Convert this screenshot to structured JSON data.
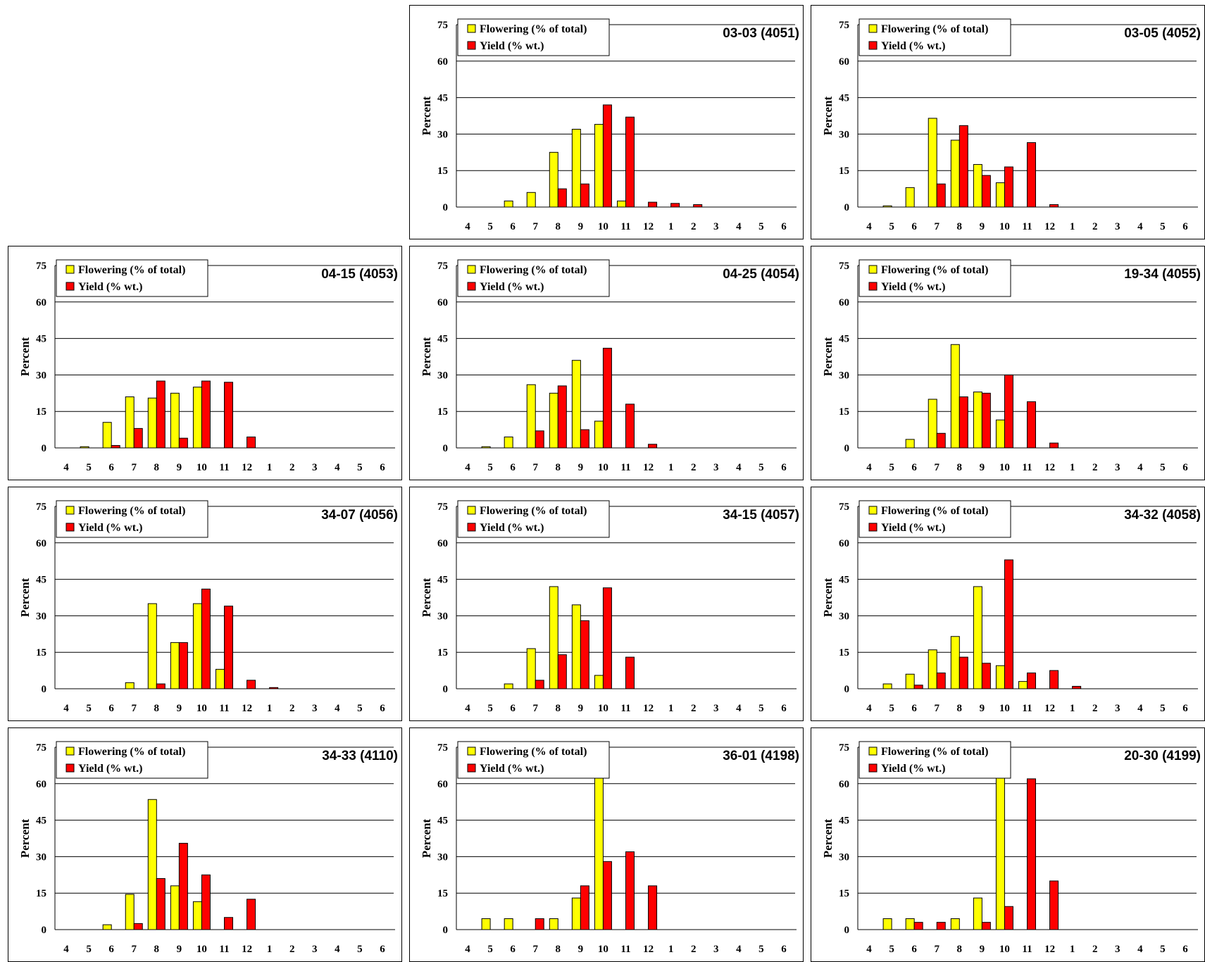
{
  "colors": {
    "flowering": "#ffff00",
    "yield": "#ff0000"
  },
  "chart_data": [
    {
      "type": "bar",
      "title": "03-03 (4051)",
      "ylabel": "Percent",
      "ylim": [
        0,
        75
      ],
      "yticks": [
        "0",
        "15",
        "30",
        "45",
        "60",
        "75"
      ],
      "categories": [
        "4",
        "5",
        "6",
        "7",
        "8",
        "9",
        "10",
        "11",
        "12",
        "1",
        "2",
        "3",
        "4",
        "5",
        "6"
      ],
      "legend": "top-left",
      "grid": true,
      "series": [
        {
          "name": "Flowering (% of total)",
          "values": [
            0,
            0,
            2.5,
            6,
            22.5,
            32,
            34,
            2.5,
            0,
            0,
            0,
            0,
            0,
            0,
            0
          ]
        },
        {
          "name": "Yield (% wt.)",
          "values": [
            0,
            0,
            0,
            0,
            7.5,
            9.5,
            42,
            37,
            2,
            1.5,
            1,
            0,
            0,
            0,
            0
          ]
        }
      ]
    },
    {
      "type": "bar",
      "title": "03-05 (4052)",
      "ylabel": "Percent",
      "ylim": [
        0,
        75
      ],
      "yticks": [
        "0",
        "15",
        "30",
        "45",
        "60",
        "75"
      ],
      "categories": [
        "4",
        "5",
        "6",
        "7",
        "8",
        "9",
        "10",
        "11",
        "12",
        "1",
        "2",
        "3",
        "4",
        "5",
        "6"
      ],
      "legend": "top-left",
      "grid": true,
      "series": [
        {
          "name": "Flowering (% of total)",
          "values": [
            0,
            0.5,
            8,
            36.5,
            27.5,
            17.5,
            10,
            0,
            0,
            0,
            0,
            0,
            0,
            0,
            0
          ]
        },
        {
          "name": "Yield (% wt.)",
          "values": [
            0,
            0,
            0,
            9.5,
            33.5,
            13,
            16.5,
            26.5,
            1,
            0,
            0,
            0,
            0,
            0,
            0
          ]
        }
      ]
    },
    {
      "type": "bar",
      "title": "04-15 (4053)",
      "ylabel": "Percent",
      "ylim": [
        0,
        75
      ],
      "yticks": [
        "0",
        "15",
        "30",
        "45",
        "60",
        "75"
      ],
      "categories": [
        "4",
        "5",
        "6",
        "7",
        "8",
        "9",
        "10",
        "11",
        "12",
        "1",
        "2",
        "3",
        "4",
        "5",
        "6"
      ],
      "legend": "top-left",
      "grid": true,
      "series": [
        {
          "name": "Flowering (% of total)",
          "values": [
            0,
            0.5,
            10.5,
            21,
            20.5,
            22.5,
            25,
            0,
            0,
            0,
            0,
            0,
            0,
            0,
            0
          ]
        },
        {
          "name": "Yield (% wt.)",
          "values": [
            0,
            0,
            1,
            8,
            27.5,
            4,
            27.5,
            27,
            4.5,
            0,
            0,
            0,
            0,
            0,
            0
          ]
        }
      ]
    },
    {
      "type": "bar",
      "title": "04-25 (4054)",
      "ylabel": "Percent",
      "ylim": [
        0,
        75
      ],
      "yticks": [
        "0",
        "15",
        "30",
        "45",
        "60",
        "75"
      ],
      "categories": [
        "4",
        "5",
        "6",
        "7",
        "8",
        "9",
        "10",
        "11",
        "12",
        "1",
        "2",
        "3",
        "4",
        "5",
        "6"
      ],
      "legend": "top-left",
      "grid": true,
      "series": [
        {
          "name": "Flowering (% of total)",
          "values": [
            0,
            0.5,
            4.5,
            26,
            22.5,
            36,
            11,
            0,
            0,
            0,
            0,
            0,
            0,
            0,
            0
          ]
        },
        {
          "name": "Yield (% wt.)",
          "values": [
            0,
            0,
            0,
            7,
            25.5,
            7.5,
            41,
            18,
            1.5,
            0,
            0,
            0,
            0,
            0,
            0
          ]
        }
      ]
    },
    {
      "type": "bar",
      "title": "19-34 (4055)",
      "ylabel": "Percent",
      "ylim": [
        0,
        75
      ],
      "yticks": [
        "0",
        "15",
        "30",
        "45",
        "60",
        "75"
      ],
      "categories": [
        "4",
        "5",
        "6",
        "7",
        "8",
        "9",
        "10",
        "11",
        "12",
        "1",
        "2",
        "3",
        "4",
        "5",
        "6"
      ],
      "legend": "top-left",
      "grid": true,
      "series": [
        {
          "name": "Flowering (% of total)",
          "values": [
            0,
            0,
            3.5,
            20,
            42.5,
            23,
            11.5,
            0,
            0,
            0,
            0,
            0,
            0,
            0,
            0
          ]
        },
        {
          "name": "Yield (% wt.)",
          "values": [
            0,
            0,
            0,
            6,
            21,
            22.5,
            30,
            19,
            2,
            0,
            0,
            0,
            0,
            0,
            0
          ]
        }
      ]
    },
    {
      "type": "bar",
      "title": "34-07 (4056)",
      "ylabel": "Percent",
      "ylim": [
        0,
        75
      ],
      "yticks": [
        "0",
        "15",
        "30",
        "45",
        "60",
        "75"
      ],
      "categories": [
        "4",
        "5",
        "6",
        "7",
        "8",
        "9",
        "10",
        "11",
        "12",
        "1",
        "2",
        "3",
        "4",
        "5",
        "6"
      ],
      "legend": "top-left",
      "grid": true,
      "series": [
        {
          "name": "Flowering (% of total)",
          "values": [
            0,
            0,
            0,
            2.5,
            35,
            19,
            35,
            8,
            0,
            0,
            0,
            0,
            0,
            0,
            0
          ]
        },
        {
          "name": "Yield (% wt.)",
          "values": [
            0,
            0,
            0,
            0,
            2,
            19,
            41,
            34,
            3.5,
            0.5,
            0,
            0,
            0,
            0,
            0
          ]
        }
      ]
    },
    {
      "type": "bar",
      "title": "34-15 (4057)",
      "ylabel": "Percent",
      "ylim": [
        0,
        75
      ],
      "yticks": [
        "0",
        "15",
        "30",
        "45",
        "60",
        "75"
      ],
      "categories": [
        "4",
        "5",
        "6",
        "7",
        "8",
        "9",
        "10",
        "11",
        "12",
        "1",
        "2",
        "3",
        "4",
        "5",
        "6"
      ],
      "legend": "top-left",
      "grid": true,
      "series": [
        {
          "name": "Flowering (% of total)",
          "values": [
            0,
            0,
            2,
            16.5,
            42,
            34.5,
            5.5,
            0,
            0,
            0,
            0,
            0,
            0,
            0,
            0
          ]
        },
        {
          "name": "Yield (% wt.)",
          "values": [
            0,
            0,
            0,
            3.5,
            14,
            28,
            41.5,
            13,
            0,
            0,
            0,
            0,
            0,
            0,
            0
          ]
        }
      ]
    },
    {
      "type": "bar",
      "title": "34-32 (4058)",
      "ylabel": "Percent",
      "ylim": [
        0,
        75
      ],
      "yticks": [
        "0",
        "15",
        "30",
        "45",
        "60",
        "75"
      ],
      "categories": [
        "4",
        "5",
        "6",
        "7",
        "8",
        "9",
        "10",
        "11",
        "12",
        "1",
        "2",
        "3",
        "4",
        "5",
        "6"
      ],
      "legend": "top-left",
      "grid": true,
      "series": [
        {
          "name": "Flowering (% of total)",
          "values": [
            0,
            2,
            6,
            16,
            21.5,
            42,
            9.5,
            3,
            0,
            0,
            0,
            0,
            0,
            0,
            0
          ]
        },
        {
          "name": "Yield (% wt.)",
          "values": [
            0,
            0,
            1.5,
            6.5,
            13,
            10.5,
            53,
            6.5,
            7.5,
            1,
            0,
            0,
            0,
            0,
            0
          ]
        }
      ]
    },
    {
      "type": "bar",
      "title": "34-33 (4110)",
      "ylabel": "Percent",
      "ylim": [
        0,
        75
      ],
      "yticks": [
        "0",
        "15",
        "30",
        "45",
        "60",
        "75"
      ],
      "categories": [
        "4",
        "5",
        "6",
        "7",
        "8",
        "9",
        "10",
        "11",
        "12",
        "1",
        "2",
        "3",
        "4",
        "5",
        "6"
      ],
      "legend": "top-left",
      "grid": true,
      "series": [
        {
          "name": "Flowering (% of total)",
          "values": [
            0,
            0,
            2,
            14.5,
            53.5,
            18,
            11.5,
            0,
            0,
            0,
            0,
            0,
            0,
            0,
            0
          ]
        },
        {
          "name": "Yield (% wt.)",
          "values": [
            0,
            0,
            0,
            2.5,
            21,
            35.5,
            22.5,
            5,
            12.5,
            0,
            0,
            0,
            0,
            0,
            0
          ]
        }
      ]
    },
    {
      "type": "bar",
      "title": "36-01 (4198)",
      "ylabel": "Percent",
      "ylim": [
        0,
        75
      ],
      "yticks": [
        "0",
        "15",
        "30",
        "45",
        "60",
        "75"
      ],
      "categories": [
        "4",
        "5",
        "6",
        "7",
        "8",
        "9",
        "10",
        "11",
        "12",
        "1",
        "2",
        "3",
        "4",
        "5",
        "6"
      ],
      "legend": "top-left",
      "grid": true,
      "series": [
        {
          "name": "Flowering (% of total)",
          "values": [
            0,
            4.5,
            4.5,
            0,
            4.5,
            13,
            74,
            0,
            0,
            0,
            0,
            0,
            0,
            0,
            0
          ]
        },
        {
          "name": "Yield (% wt.)",
          "values": [
            0,
            0,
            0,
            4.5,
            0,
            18,
            28,
            32,
            18,
            0,
            0,
            0,
            0,
            0,
            0
          ]
        }
      ]
    },
    {
      "type": "bar",
      "title": "20-30 (4199)",
      "ylabel": "Percent",
      "ylim": [
        0,
        75
      ],
      "yticks": [
        "0",
        "15",
        "30",
        "45",
        "60",
        "75"
      ],
      "categories": [
        "4",
        "5",
        "6",
        "7",
        "8",
        "9",
        "10",
        "11",
        "12",
        "1",
        "2",
        "3",
        "4",
        "5",
        "6"
      ],
      "legend": "top-left",
      "grid": true,
      "series": [
        {
          "name": "Flowering (% of total)",
          "values": [
            0,
            4.5,
            4.5,
            0,
            4.5,
            13,
            74,
            0,
            0,
            0,
            0,
            0,
            0,
            0,
            0
          ]
        },
        {
          "name": "Yield (% wt.)",
          "values": [
            0,
            0,
            3,
            3,
            0,
            3,
            9.5,
            62,
            20,
            0,
            0,
            0,
            0,
            0,
            0
          ]
        }
      ]
    }
  ]
}
